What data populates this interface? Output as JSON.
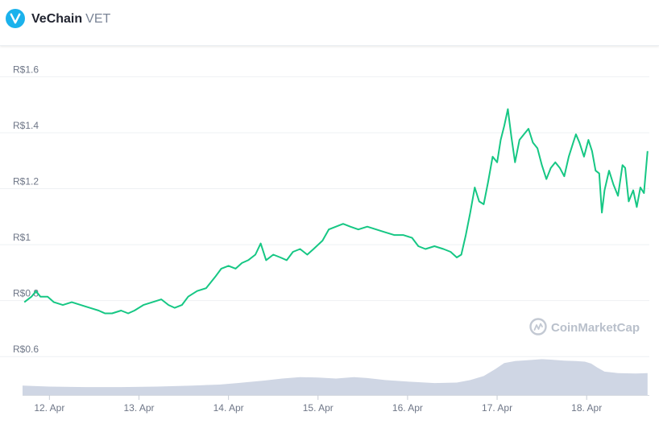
{
  "header": {
    "name": "VeChain",
    "symbol": "VET",
    "logo_icon": "vechain-v-icon",
    "logo_color": "#1bb2ec"
  },
  "watermark": "CoinMarketCap",
  "chart_data": {
    "type": "line",
    "title": "",
    "xlabel": "",
    "ylabel": "",
    "currency": "R$",
    "ylim": [
      0.5,
      1.65
    ],
    "y_ticks": [
      {
        "value": 0.6,
        "label": "R$0.6"
      },
      {
        "value": 0.8,
        "label": "R$0.8"
      },
      {
        "value": 1.0,
        "label": "R$1"
      },
      {
        "value": 1.2,
        "label": "R$1.2"
      },
      {
        "value": 1.4,
        "label": "R$1.4"
      },
      {
        "value": 1.6,
        "label": "R$1.6"
      }
    ],
    "x_ticks": [
      "12. Apr",
      "13. Apr",
      "14. Apr",
      "15. Apr",
      "16. Apr",
      "17. Apr",
      "18. Apr"
    ],
    "x_range_days": [
      11.7,
      18.7
    ],
    "grid": true,
    "line_color": "#16c784",
    "volume_color": "#cfd6e4",
    "price_series": {
      "name": "Price",
      "points": [
        [
          11.72,
          0.78
        ],
        [
          11.8,
          0.8
        ],
        [
          11.85,
          0.82
        ],
        [
          11.9,
          0.8
        ],
        [
          11.98,
          0.8
        ],
        [
          12.05,
          0.78
        ],
        [
          12.15,
          0.77
        ],
        [
          12.25,
          0.78
        ],
        [
          12.35,
          0.77
        ],
        [
          12.45,
          0.76
        ],
        [
          12.55,
          0.75
        ],
        [
          12.62,
          0.74
        ],
        [
          12.7,
          0.74
        ],
        [
          12.8,
          0.75
        ],
        [
          12.88,
          0.74
        ],
        [
          12.95,
          0.75
        ],
        [
          13.05,
          0.77
        ],
        [
          13.15,
          0.78
        ],
        [
          13.25,
          0.79
        ],
        [
          13.33,
          0.77
        ],
        [
          13.4,
          0.76
        ],
        [
          13.48,
          0.77
        ],
        [
          13.55,
          0.8
        ],
        [
          13.65,
          0.82
        ],
        [
          13.75,
          0.83
        ],
        [
          13.85,
          0.87
        ],
        [
          13.92,
          0.9
        ],
        [
          14.0,
          0.91
        ],
        [
          14.08,
          0.9
        ],
        [
          14.15,
          0.92
        ],
        [
          14.22,
          0.93
        ],
        [
          14.3,
          0.95
        ],
        [
          14.36,
          0.99
        ],
        [
          14.42,
          0.93
        ],
        [
          14.5,
          0.95
        ],
        [
          14.58,
          0.94
        ],
        [
          14.65,
          0.93
        ],
        [
          14.72,
          0.96
        ],
        [
          14.8,
          0.97
        ],
        [
          14.88,
          0.95
        ],
        [
          14.95,
          0.97
        ],
        [
          15.05,
          1.0
        ],
        [
          15.12,
          1.04
        ],
        [
          15.2,
          1.05
        ],
        [
          15.28,
          1.06
        ],
        [
          15.36,
          1.05
        ],
        [
          15.45,
          1.04
        ],
        [
          15.55,
          1.05
        ],
        [
          15.65,
          1.04
        ],
        [
          15.75,
          1.03
        ],
        [
          15.85,
          1.02
        ],
        [
          15.95,
          1.02
        ],
        [
          16.05,
          1.01
        ],
        [
          16.12,
          0.98
        ],
        [
          16.2,
          0.97
        ],
        [
          16.3,
          0.98
        ],
        [
          16.4,
          0.97
        ],
        [
          16.48,
          0.96
        ],
        [
          16.55,
          0.94
        ],
        [
          16.6,
          0.95
        ],
        [
          16.65,
          1.02
        ],
        [
          16.7,
          1.1
        ],
        [
          16.75,
          1.19
        ],
        [
          16.8,
          1.14
        ],
        [
          16.85,
          1.13
        ],
        [
          16.9,
          1.21
        ],
        [
          16.95,
          1.3
        ],
        [
          17.0,
          1.28
        ],
        [
          17.04,
          1.36
        ],
        [
          17.08,
          1.41
        ],
        [
          17.12,
          1.47
        ],
        [
          17.16,
          1.37
        ],
        [
          17.2,
          1.28
        ],
        [
          17.25,
          1.36
        ],
        [
          17.3,
          1.38
        ],
        [
          17.35,
          1.4
        ],
        [
          17.4,
          1.35
        ],
        [
          17.45,
          1.33
        ],
        [
          17.5,
          1.27
        ],
        [
          17.55,
          1.22
        ],
        [
          17.6,
          1.26
        ],
        [
          17.65,
          1.28
        ],
        [
          17.7,
          1.26
        ],
        [
          17.75,
          1.23
        ],
        [
          17.8,
          1.3
        ],
        [
          17.85,
          1.35
        ],
        [
          17.88,
          1.38
        ],
        [
          17.92,
          1.35
        ],
        [
          17.97,
          1.3
        ],
        [
          18.02,
          1.36
        ],
        [
          18.06,
          1.32
        ],
        [
          18.1,
          1.25
        ],
        [
          18.14,
          1.24
        ],
        [
          18.17,
          1.1
        ],
        [
          18.2,
          1.18
        ],
        [
          18.25,
          1.25
        ],
        [
          18.3,
          1.2
        ],
        [
          18.35,
          1.16
        ],
        [
          18.4,
          1.27
        ],
        [
          18.43,
          1.26
        ],
        [
          18.47,
          1.14
        ],
        [
          18.52,
          1.18
        ],
        [
          18.56,
          1.12
        ],
        [
          18.6,
          1.19
        ],
        [
          18.64,
          1.17
        ],
        [
          18.68,
          1.32
        ]
      ]
    },
    "volume_series": {
      "name": "Volume",
      "scale": "relative",
      "points": [
        [
          11.7,
          0.19
        ],
        [
          12.0,
          0.17
        ],
        [
          12.4,
          0.16
        ],
        [
          12.8,
          0.16
        ],
        [
          13.2,
          0.17
        ],
        [
          13.6,
          0.19
        ],
        [
          13.9,
          0.21
        ],
        [
          14.1,
          0.24
        ],
        [
          14.4,
          0.29
        ],
        [
          14.6,
          0.33
        ],
        [
          14.8,
          0.36
        ],
        [
          15.0,
          0.35
        ],
        [
          15.2,
          0.33
        ],
        [
          15.4,
          0.36
        ],
        [
          15.55,
          0.34
        ],
        [
          15.75,
          0.3
        ],
        [
          16.0,
          0.27
        ],
        [
          16.3,
          0.24
        ],
        [
          16.55,
          0.25
        ],
        [
          16.7,
          0.3
        ],
        [
          16.85,
          0.38
        ],
        [
          16.98,
          0.52
        ],
        [
          17.08,
          0.64
        ],
        [
          17.2,
          0.68
        ],
        [
          17.35,
          0.7
        ],
        [
          17.5,
          0.72
        ],
        [
          17.6,
          0.71
        ],
        [
          17.75,
          0.69
        ],
        [
          17.88,
          0.68
        ],
        [
          17.98,
          0.67
        ],
        [
          18.05,
          0.63
        ],
        [
          18.12,
          0.55
        ],
        [
          18.2,
          0.47
        ],
        [
          18.35,
          0.44
        ],
        [
          18.55,
          0.43
        ],
        [
          18.68,
          0.44
        ]
      ]
    }
  }
}
